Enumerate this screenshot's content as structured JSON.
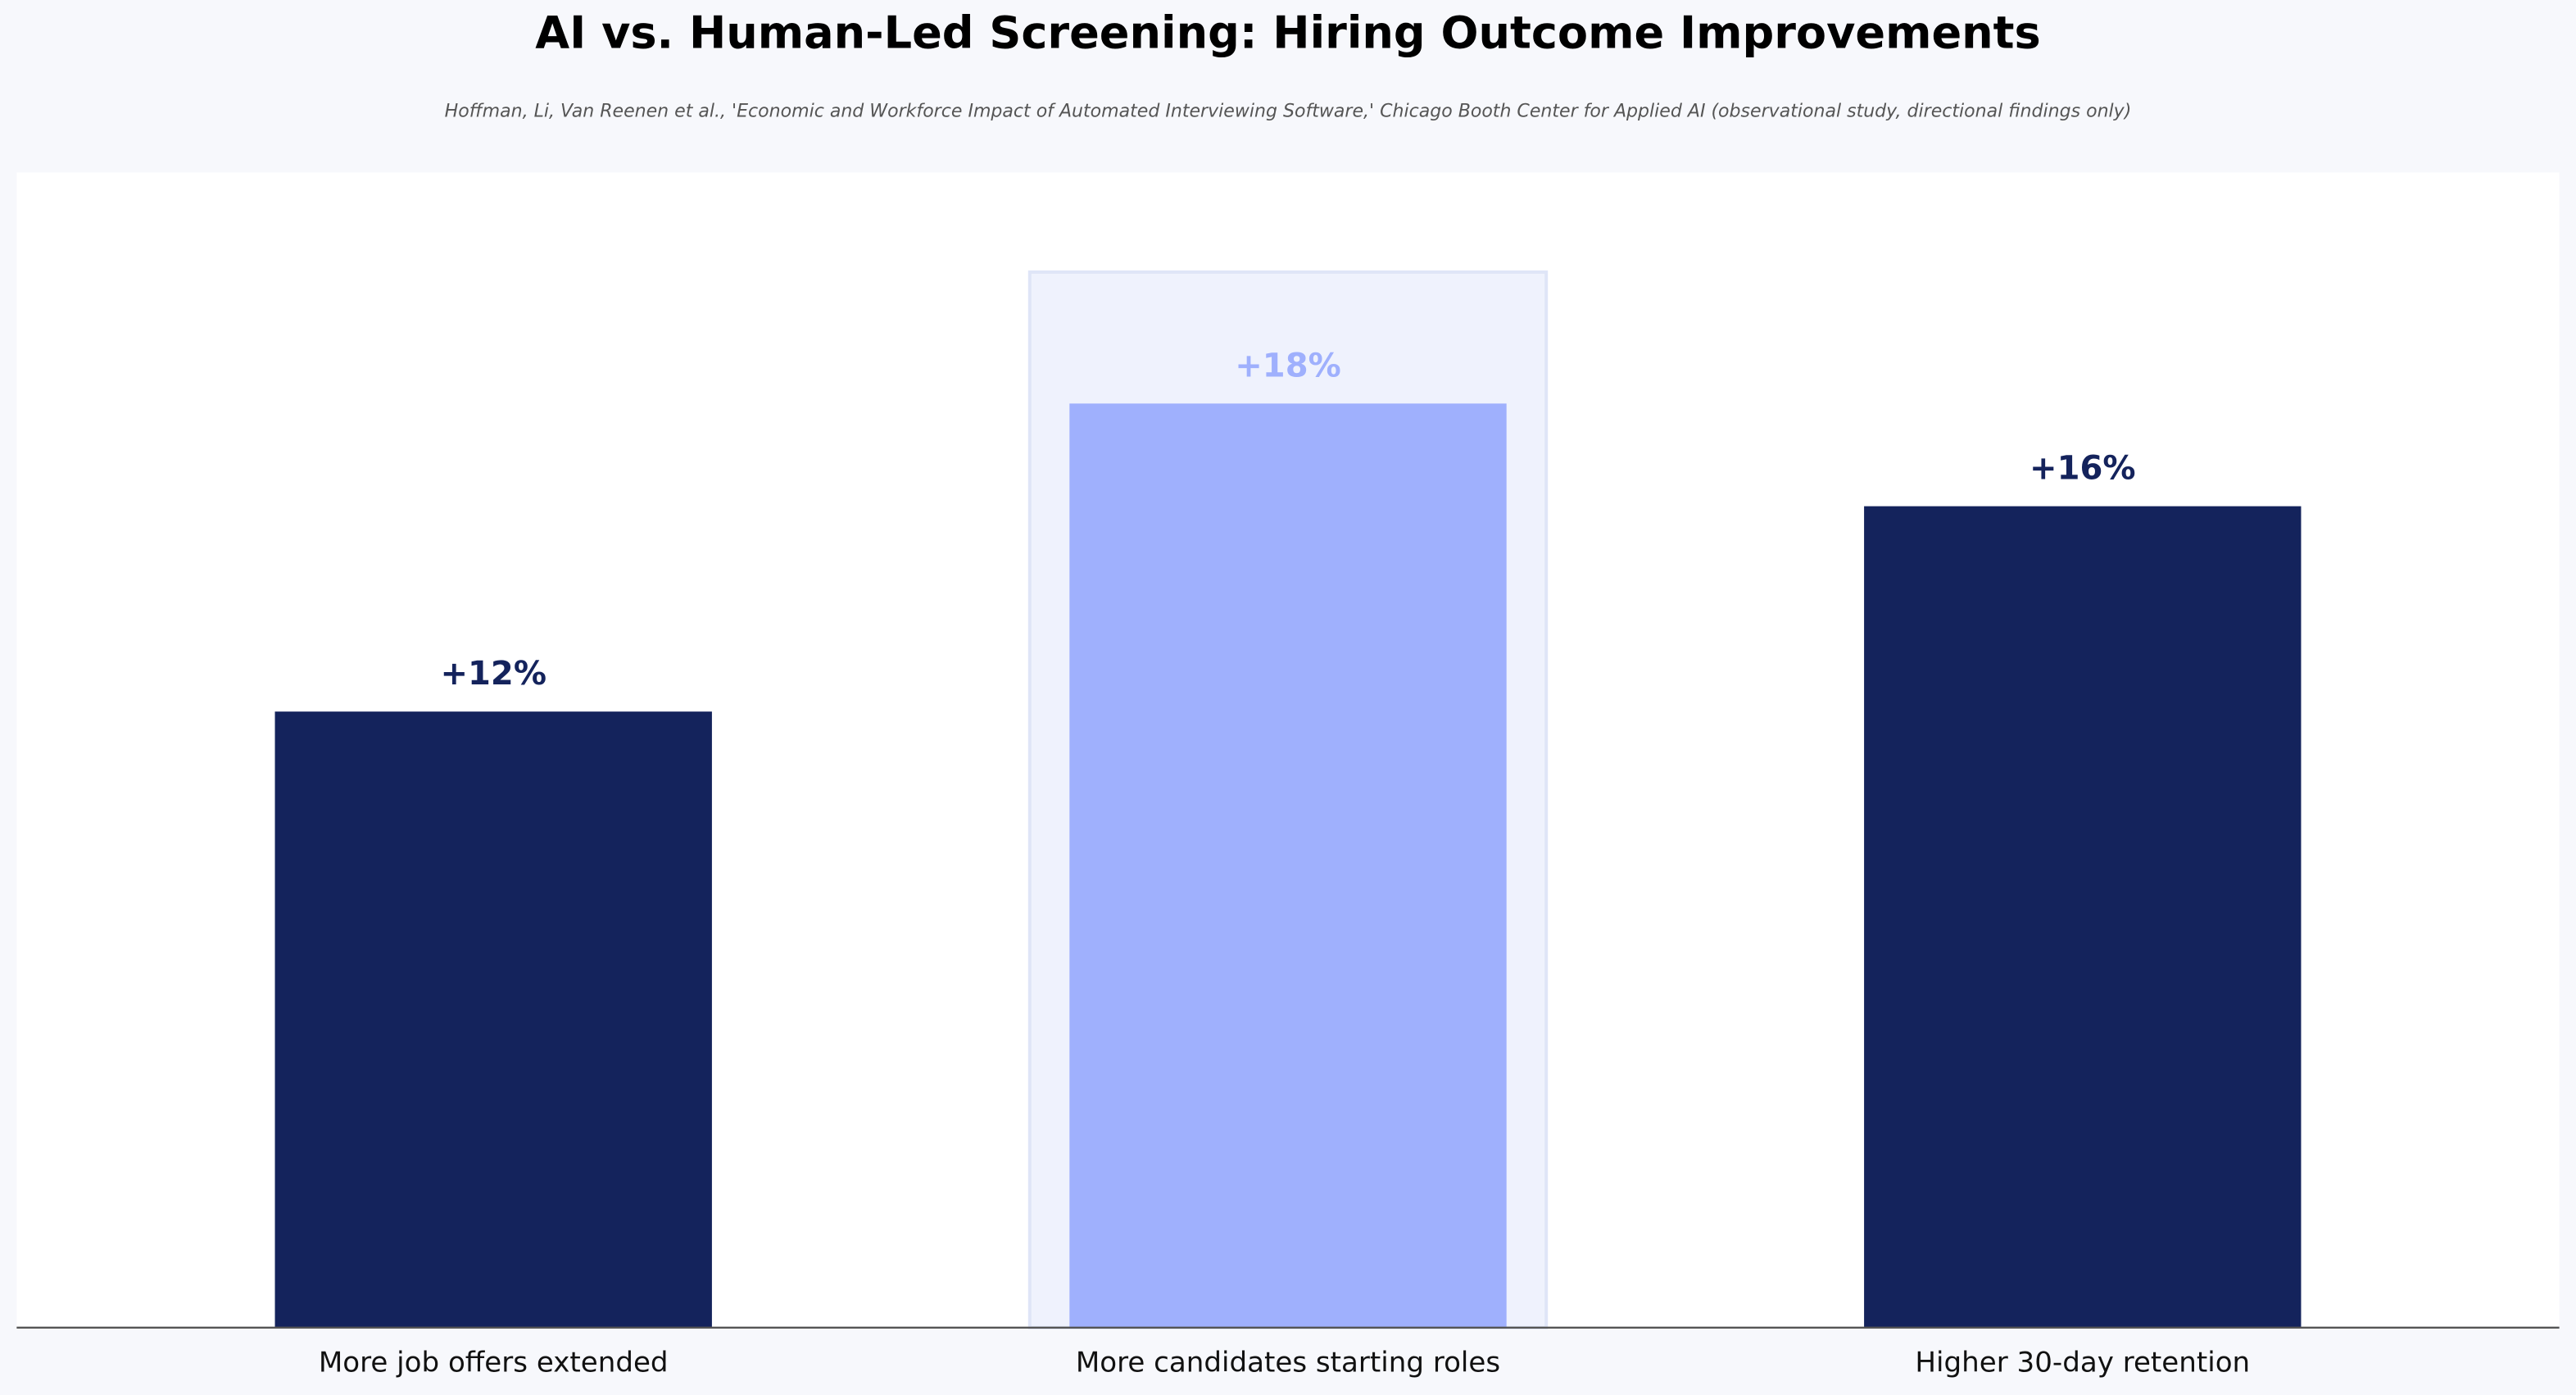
{
  "chart_data": {
    "type": "bar",
    "title": "AI vs. Human-Led Screening: Hiring Outcome Improvements",
    "subtitle": "Hoffman, Li, Van Reenen et al., 'Economic and Workforce Impact of Automated Interviewing Software,' Chicago Booth Center for Applied AI (observational study, directional findings only)",
    "categories": [
      "More job offers extended",
      "More candidates starting roles",
      "Higher 30-day retention"
    ],
    "values": [
      12,
      18,
      16
    ],
    "value_labels": [
      "+12%",
      "+18%",
      "+16%"
    ],
    "colors": [
      "#14235c",
      "#9fb0fd",
      "#14235c"
    ],
    "highlight_index": 1,
    "highlight_color": "#eff2fd",
    "ylim": [
      0,
      22.5
    ]
  }
}
